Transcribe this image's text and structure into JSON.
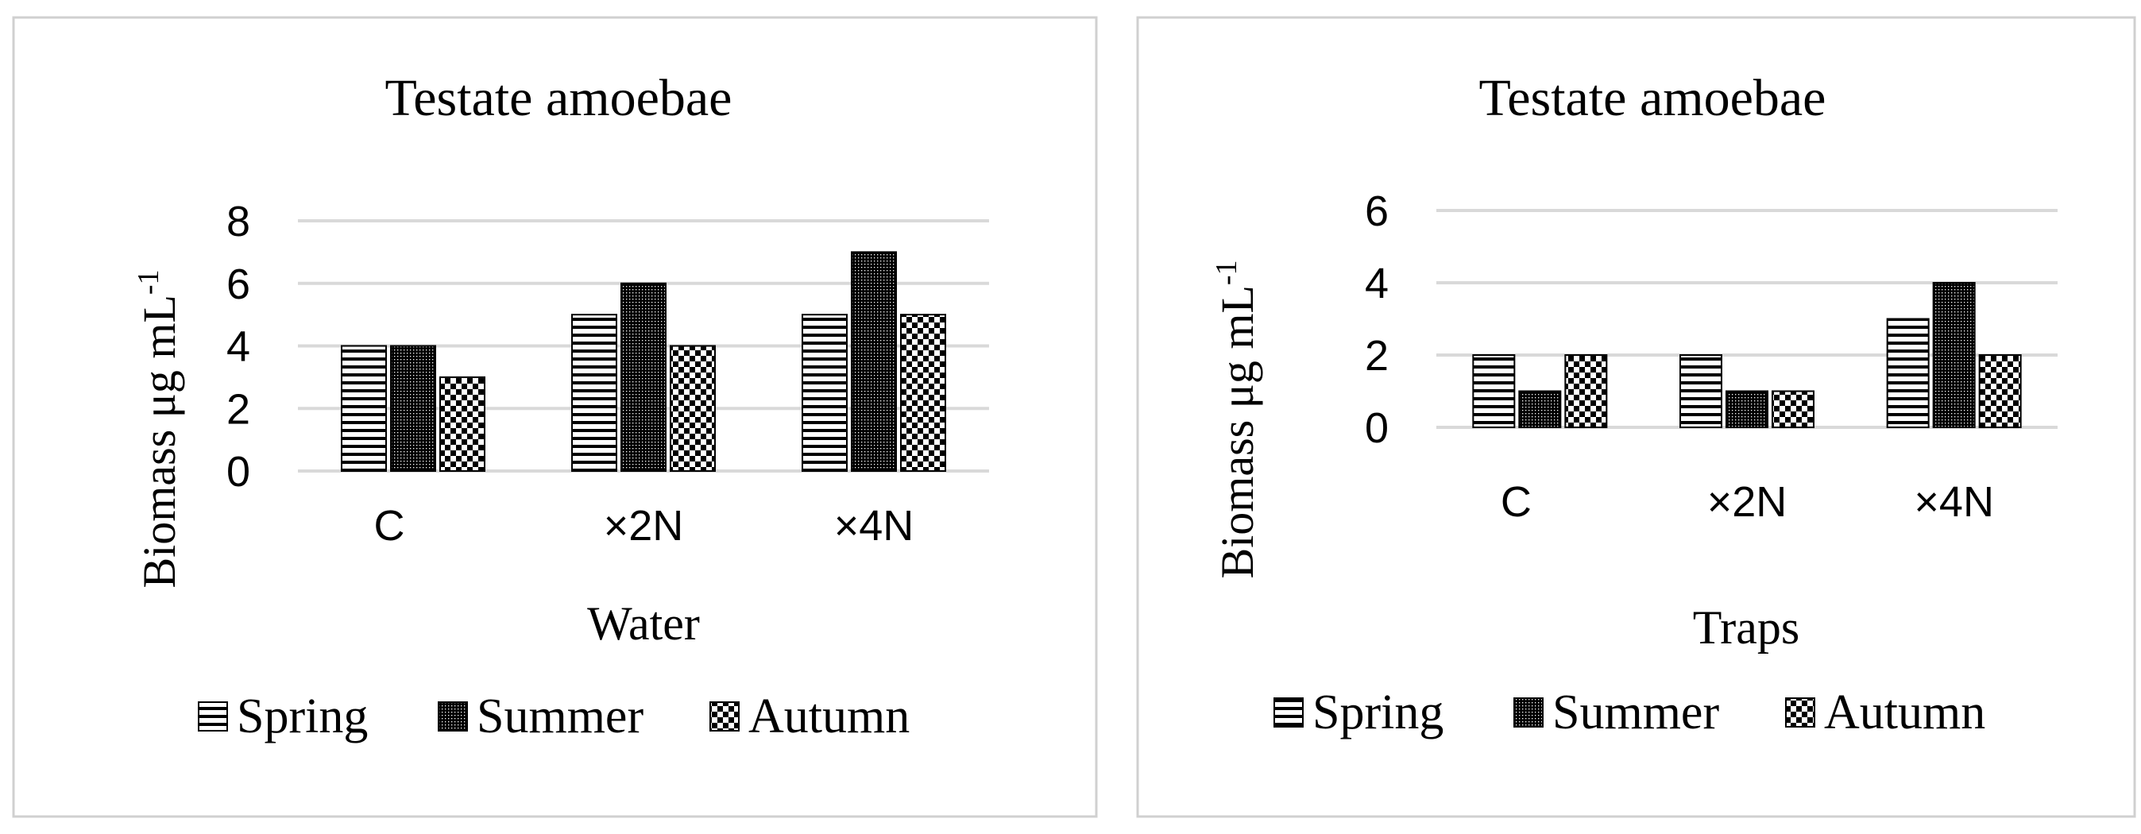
{
  "colors": {
    "frame": "#d0d0d0",
    "grid": "#d9d9d9",
    "bar_stroke": "#000000",
    "pattern_ink": "#000000",
    "pattern_paper": "#ffffff"
  },
  "legend_entries": [
    "Spring",
    "Summer",
    "Autumn"
  ],
  "patterns": {
    "Spring": "horizontal-stripes",
    "Summer": "dense-dots",
    "Autumn": "checkerboard"
  },
  "chart_data": [
    {
      "type": "bar",
      "title": "Testate amoebae",
      "ylabel": "Biomass μg mL",
      "ylabel_sup": "-1",
      "xlabel": "Water",
      "categories": [
        "C",
        "×2N",
        "×4N"
      ],
      "yticks": [
        "0",
        "2",
        "4",
        "6",
        "8"
      ],
      "ylim": [
        0,
        8
      ],
      "grid": true,
      "legend_position": "bottom",
      "series": [
        {
          "name": "Spring",
          "values": [
            4,
            5,
            5
          ]
        },
        {
          "name": "Summer",
          "values": [
            4,
            6,
            7
          ]
        },
        {
          "name": "Autumn",
          "values": [
            3,
            4,
            5
          ]
        }
      ]
    },
    {
      "type": "bar",
      "title": "Testate amoebae",
      "ylabel": "Biomass μg mL",
      "ylabel_sup": "-1",
      "xlabel": "Traps",
      "categories": [
        "C",
        "×2N",
        "×4N"
      ],
      "yticks": [
        "0",
        "2",
        "4",
        "6"
      ],
      "ylim": [
        0,
        6
      ],
      "grid": true,
      "legend_position": "bottom",
      "series": [
        {
          "name": "Spring",
          "values": [
            2,
            2,
            3
          ]
        },
        {
          "name": "Summer",
          "values": [
            1,
            1,
            4
          ]
        },
        {
          "name": "Autumn",
          "values": [
            2,
            1,
            2
          ]
        }
      ]
    }
  ]
}
